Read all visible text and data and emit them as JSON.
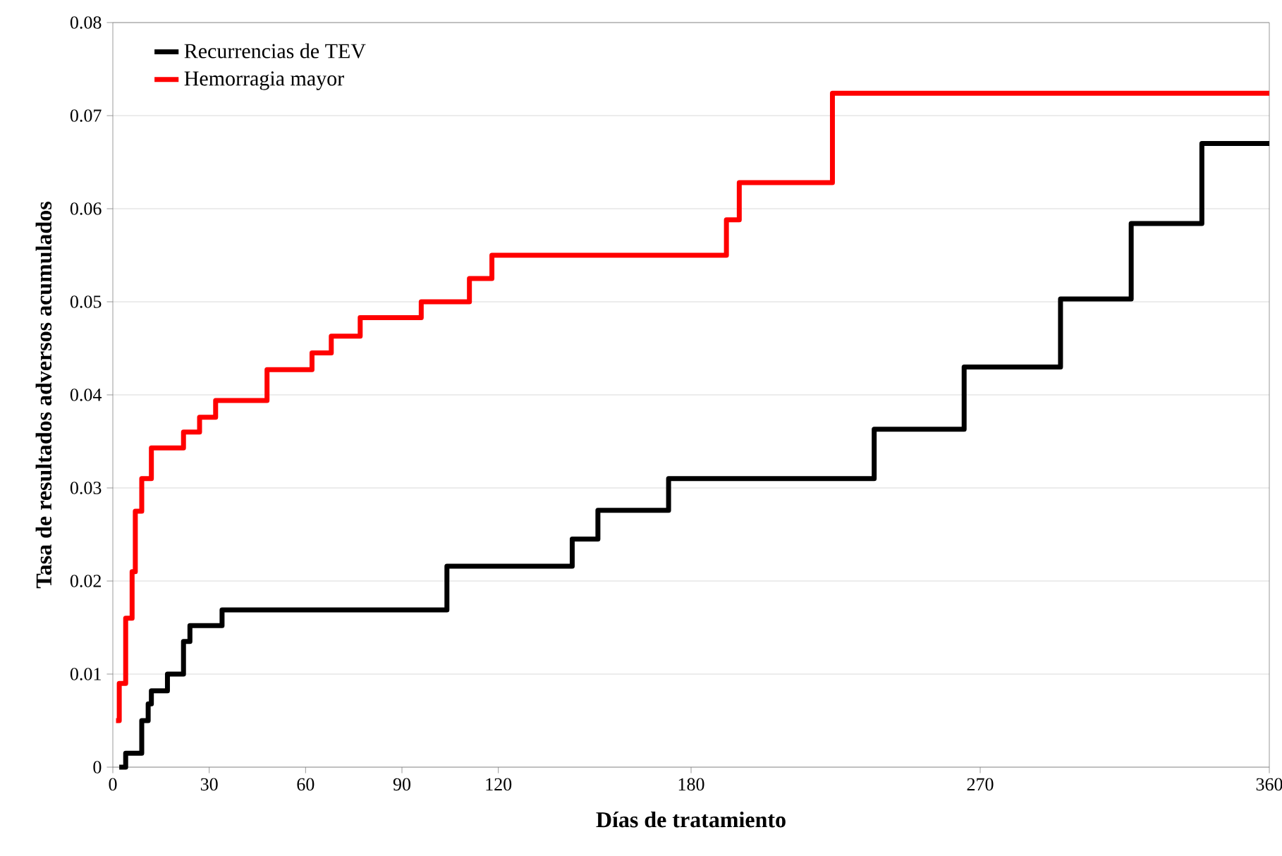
{
  "chart_data": {
    "type": "step",
    "xlabel": "Días de tratamiento",
    "ylabel": "Tasa de resultados adversos acumulados",
    "xlim": [
      0,
      360
    ],
    "xticks": [
      0,
      30,
      60,
      90,
      120,
      180,
      270,
      360
    ],
    "ylim": [
      0,
      0.08
    ],
    "yticks": [
      0,
      0.01,
      0.02,
      0.03,
      0.04,
      0.05,
      0.06,
      0.07,
      0.08
    ],
    "grid": "y",
    "legend": "top left",
    "series": [
      {
        "name": "Recurrencias de TEV",
        "color": "#000000",
        "x": [
          2,
          4,
          9,
          11,
          12,
          17,
          22,
          24,
          34,
          104,
          143,
          151,
          173,
          237,
          265,
          295,
          317,
          339,
          360
        ],
        "values": [
          0,
          0.0015,
          0.005,
          0.0068,
          0.0082,
          0.01,
          0.0135,
          0.0152,
          0.0169,
          0.0216,
          0.0245,
          0.0276,
          0.031,
          0.0363,
          0.043,
          0.0503,
          0.0584,
          0.067,
          0.067
        ]
      },
      {
        "name": "Hemorragia mayor",
        "color": "#ff0000",
        "x": [
          1,
          2,
          4,
          6,
          7,
          9,
          12,
          22,
          27,
          32,
          48,
          62,
          68,
          77,
          96,
          111,
          118,
          191,
          195,
          224,
          360
        ],
        "values": [
          0.005,
          0.009,
          0.016,
          0.021,
          0.0275,
          0.031,
          0.0343,
          0.036,
          0.0376,
          0.0394,
          0.0427,
          0.0445,
          0.0463,
          0.0483,
          0.05,
          0.0525,
          0.055,
          0.0588,
          0.0628,
          0.0724,
          0.0724
        ]
      }
    ]
  }
}
